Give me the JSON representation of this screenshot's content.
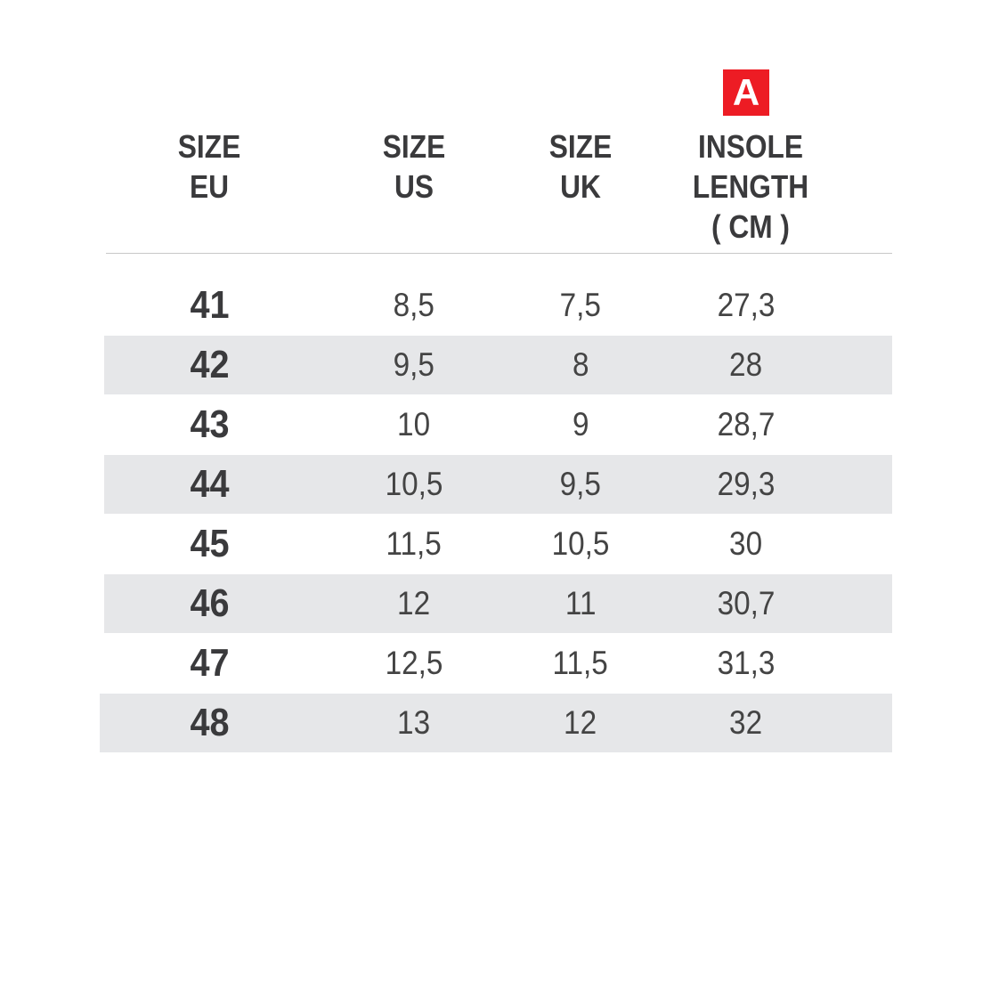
{
  "badge": {
    "label": "A",
    "color": "#ed1c24"
  },
  "headers": [
    "SIZE\nEU",
    "SIZE\nUS",
    "SIZE\nUK",
    "INSOLE\nLENGTH\n( CM )"
  ],
  "rows": [
    [
      "41",
      "8,5",
      "7,5",
      "27,3"
    ],
    [
      "42",
      "9,5",
      "8",
      "28"
    ],
    [
      "43",
      "10",
      "9",
      "28,7"
    ],
    [
      "44",
      "10,5",
      "9,5",
      "29,3"
    ],
    [
      "45",
      "11,5",
      "10,5",
      "30"
    ],
    [
      "46",
      "12",
      "11",
      "30,7"
    ],
    [
      "47",
      "12,5",
      "11,5",
      "31,3"
    ],
    [
      "48",
      "13",
      "12",
      "32"
    ]
  ],
  "colors": {
    "text": "#3a3a3c",
    "stripe": "#e6e7e9",
    "rule": "#c8c8c8"
  }
}
